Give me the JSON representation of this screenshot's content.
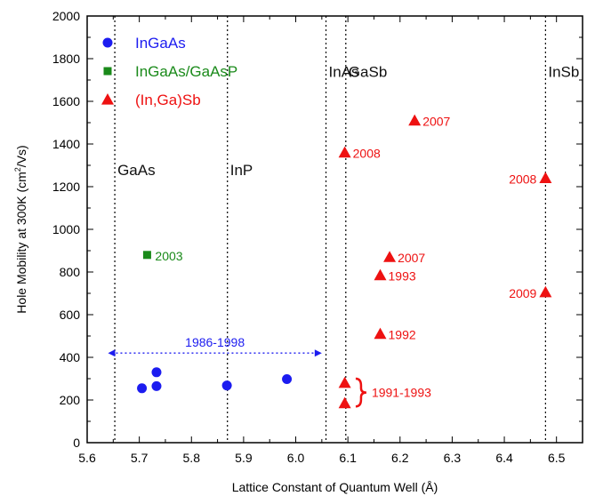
{
  "chart_data": {
    "type": "scatter",
    "xlabel": "Lattice Constant of Quantum Well (Å)",
    "ylabel_parts": [
      "Hole Mobility at 300K (cm",
      "2",
      "/Vs)"
    ],
    "xlim": [
      5.6,
      6.55
    ],
    "ylim": [
      0,
      2000
    ],
    "x_ticks": [
      5.6,
      5.7,
      5.8,
      5.9,
      6.0,
      6.1,
      6.2,
      6.3,
      6.4,
      6.5
    ],
    "x_tick_labels": [
      "5.6",
      "5.7",
      "5.8",
      "5.9",
      "6.0",
      "6.1",
      "6.2",
      "6.3",
      "6.4",
      "6.5"
    ],
    "y_ticks": [
      0,
      200,
      400,
      600,
      800,
      1000,
      1200,
      1400,
      1600,
      1800,
      2000
    ],
    "y_tick_labels": [
      "0",
      "200",
      "400",
      "600",
      "800",
      "1000",
      "1200",
      "1400",
      "1600",
      "1800",
      "2000"
    ],
    "grid": false,
    "legend_position": "top-left",
    "reference_lines": [
      {
        "x": 5.653,
        "label": "GaAs",
        "label_y": 1280
      },
      {
        "x": 5.869,
        "label": "InP",
        "label_y": 1280
      },
      {
        "x": 6.058,
        "label": "InAs",
        "label_y": 1740
      },
      {
        "x": 6.096,
        "label": "GaSb",
        "label_y": 1740
      },
      {
        "x": 6.479,
        "label": "InSb",
        "label_y": 1740
      }
    ],
    "series": [
      {
        "name": "InGaAs",
        "marker": "circle",
        "color": "#1c1cf0",
        "points": [
          {
            "x": 5.705,
            "y": 255,
            "label": ""
          },
          {
            "x": 5.733,
            "y": 265,
            "label": ""
          },
          {
            "x": 5.733,
            "y": 330,
            "label": ""
          },
          {
            "x": 5.868,
            "y": 268,
            "label": ""
          },
          {
            "x": 5.983,
            "y": 298,
            "label": ""
          }
        ]
      },
      {
        "name": "InGaAs/GaAsP",
        "marker": "square",
        "color": "#1a8a1a",
        "points": [
          {
            "x": 5.715,
            "y": 880,
            "label": "2003"
          }
        ]
      },
      {
        "name": "(In,Ga)Sb",
        "marker": "triangle",
        "color": "#ee1111",
        "points": [
          {
            "x": 6.094,
            "y": 280,
            "label": ""
          },
          {
            "x": 6.094,
            "y": 185,
            "label": ""
          },
          {
            "x": 6.094,
            "y": 1360,
            "label": "2008"
          },
          {
            "x": 6.162,
            "y": 510,
            "label": "1992"
          },
          {
            "x": 6.162,
            "y": 785,
            "label": "1993"
          },
          {
            "x": 6.18,
            "y": 870,
            "label": "2007"
          },
          {
            "x": 6.228,
            "y": 1510,
            "label": "2007"
          },
          {
            "x": 6.479,
            "y": 1240,
            "label": "2008"
          },
          {
            "x": 6.479,
            "y": 705,
            "label": "2009"
          }
        ]
      }
    ],
    "annotations": [
      {
        "text": "1986-1998",
        "color": "#1c1cf0",
        "arrow_from_x": 5.64,
        "arrow_to_x": 6.05,
        "y": 420
      },
      {
        "text": "1991-1993",
        "color": "#ee1111",
        "brace_x": 6.115,
        "y_low": 170,
        "y_high": 300
      }
    ]
  }
}
